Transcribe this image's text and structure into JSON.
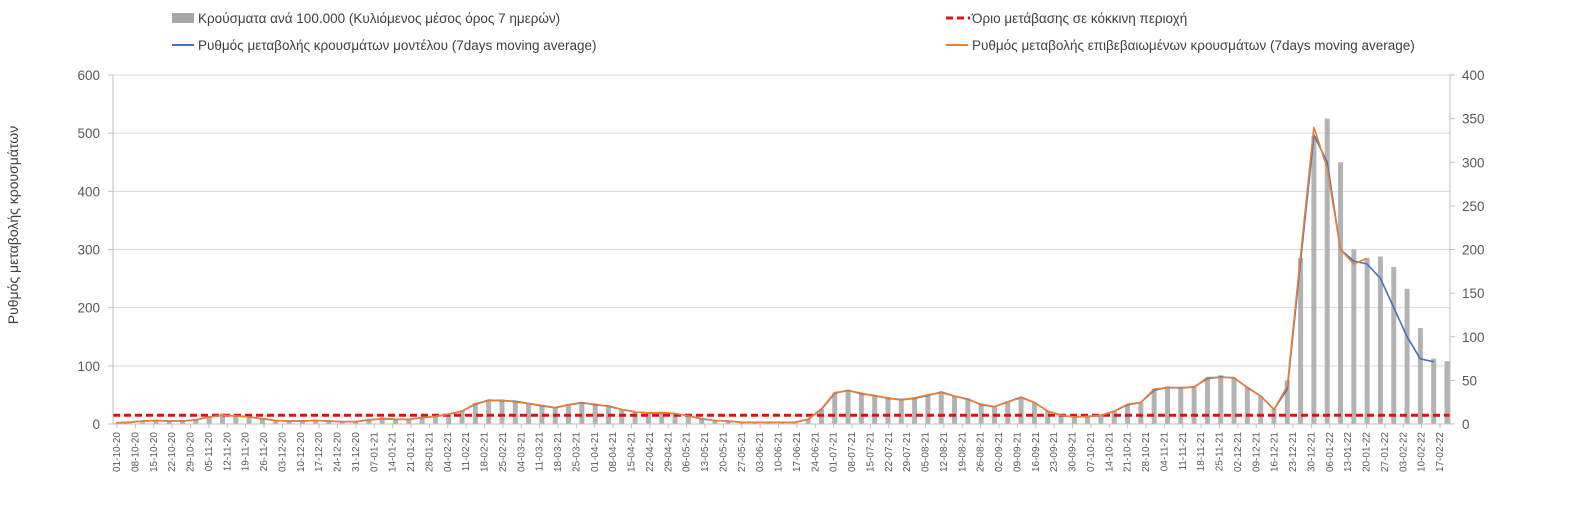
{
  "chart_data": {
    "type": "bar+line",
    "title": "",
    "ylabel": "Ρυθμός μεταβολής κρουσμάτων",
    "y2label": "",
    "ylim": [
      0,
      600
    ],
    "y2lim": [
      0,
      400
    ],
    "yticks": [
      0,
      100,
      200,
      300,
      400,
      500,
      600
    ],
    "y2ticks": [
      0,
      50,
      100,
      150,
      200,
      250,
      300,
      350,
      400
    ],
    "grid": true,
    "legend_position": "top",
    "x_tick_labels": [
      "01-10-20",
      "08-10-20",
      "15-10-20",
      "22-10-20",
      "29-10-20",
      "05-11-20",
      "12-11-20",
      "19-11-20",
      "26-11-20",
      "03-12-20",
      "10-12-20",
      "17-12-20",
      "24-12-20",
      "31-12-20",
      "07-01-21",
      "14-01-21",
      "21-01-21",
      "28-01-21",
      "04-02-21",
      "11-02-21",
      "18-02-21",
      "25-02-21",
      "04-03-21",
      "11-03-21",
      "18-03-21",
      "25-03-21",
      "01-04-21",
      "08-04-21",
      "15-04-21",
      "22-04-21",
      "29-04-21",
      "06-05-21",
      "13-05-21",
      "20-05-21",
      "27-05-21",
      "03-06-21",
      "10-06-21",
      "17-06-21",
      "24-06-21",
      "01-07-21",
      "08-07-21",
      "15-07-21",
      "22-07-21",
      "29-07-21",
      "05-08-21",
      "12-08-21",
      "19-08-21",
      "26-08-21",
      "02-09-21",
      "09-09-21",
      "16-09-21",
      "23-09-21",
      "30-09-21",
      "07-10-21",
      "14-10-21",
      "21-10-21",
      "28-10-21",
      "04-11-21",
      "11-11-21",
      "18-11-21",
      "25-11-21",
      "02-12-21",
      "09-12-21",
      "16-12-21",
      "23-12-21",
      "30-12-21",
      "06-01-22",
      "13-01-22",
      "20-01-22",
      "27-01-22",
      "03-02-22",
      "10-02-22",
      "17-02-22"
    ],
    "series": [
      {
        "name": "Κρούσματα ανά 100.000 (Κυλιόμενος μέσος όρος 7 ημερών)",
        "type": "bar",
        "axis": "right",
        "color": "#a6a6a6",
        "values": [
          1,
          1,
          2,
          3,
          3,
          4,
          5,
          9,
          12,
          11,
          9,
          7,
          5,
          4,
          4,
          5,
          4,
          3,
          3,
          6,
          8,
          6,
          6,
          8,
          9,
          11,
          15,
          24,
          28,
          27,
          26,
          24,
          22,
          19,
          23,
          25,
          22,
          21,
          17,
          14,
          13,
          13,
          12,
          10,
          6,
          4,
          3,
          2,
          2,
          2,
          2,
          2,
          6,
          17,
          36,
          39,
          35,
          33,
          30,
          28,
          29,
          33,
          37,
          32,
          29,
          22,
          20,
          26,
          31,
          25,
          15,
          10,
          8,
          9,
          10,
          15,
          22,
          24,
          40,
          43,
          41,
          42,
          53,
          56,
          53,
          42,
          32,
          17,
          50,
          190,
          330,
          350,
          300,
          200,
          190,
          192,
          180,
          155,
          110,
          75,
          72
        ]
      },
      {
        "name": "Όριο μετάβασης σε κόκκινη περιοχή",
        "type": "line",
        "style": "dashed",
        "axis": "left",
        "color": "#e01010",
        "values": [
          15
        ]
      },
      {
        "name": "Ρυθμός μεταβολής κρουσμάτων μοντέλου (7days moving average)",
        "type": "line",
        "axis": "left",
        "color": "#4472c4",
        "values": [
          2,
          3,
          5,
          6,
          5,
          5,
          7,
          12,
          15,
          14,
          12,
          9,
          6,
          5,
          5,
          6,
          5,
          4,
          4,
          7,
          9,
          8,
          8,
          11,
          13,
          17,
          22,
          34,
          41,
          40,
          39,
          35,
          31,
          28,
          33,
          37,
          33,
          31,
          25,
          21,
          19,
          19,
          18,
          14,
          9,
          6,
          5,
          3,
          3,
          3,
          3,
          3,
          8,
          25,
          53,
          58,
          52,
          49,
          44,
          42,
          44,
          49,
          55,
          48,
          43,
          33,
          30,
          38,
          46,
          37,
          22,
          15,
          12,
          13,
          15,
          22,
          33,
          37,
          58,
          63,
          62,
          64,
          78,
          81,
          79,
          63,
          48,
          25,
          60,
          280,
          497,
          450,
          300,
          280,
          275,
          250,
          200,
          150,
          112,
          107
        ]
      },
      {
        "name": "Ρυθμός μεταβολής επιβεβαιωμένων κρουσμάτων (7days moving average)",
        "type": "line",
        "axis": "left",
        "color": "#ed7d31",
        "values": [
          2,
          3,
          5,
          6,
          5,
          5,
          7,
          12,
          15,
          14,
          12,
          9,
          6,
          5,
          5,
          6,
          5,
          4,
          4,
          7,
          9,
          8,
          8,
          11,
          13,
          17,
          22,
          35,
          40,
          41,
          38,
          35,
          32,
          28,
          33,
          36,
          34,
          30,
          25,
          21,
          19,
          20,
          18,
          14,
          9,
          6,
          5,
          3,
          3,
          3,
          3,
          3,
          8,
          26,
          54,
          57,
          53,
          48,
          45,
          41,
          45,
          50,
          54,
          48,
          42,
          34,
          30,
          38,
          45,
          37,
          22,
          15,
          12,
          13,
          15,
          22,
          34,
          37,
          60,
          62,
          63,
          63,
          80,
          80,
          80,
          62,
          48,
          25,
          65,
          290,
          510,
          440,
          300,
          275,
          285
        ]
      }
    ]
  }
}
